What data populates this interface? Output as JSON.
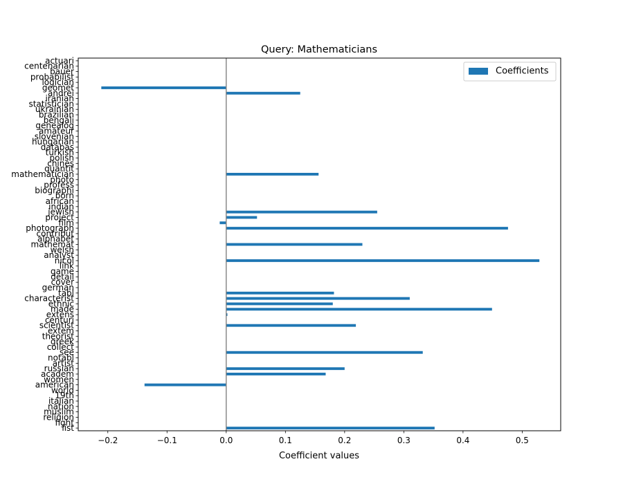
{
  "chart_data": {
    "type": "bar",
    "orientation": "horizontal",
    "title": "Query: Mathematicians",
    "xlabel": "Coefficient values",
    "ylabel": "",
    "xlim": [
      -0.25,
      0.565
    ],
    "xticks": [
      -0.2,
      -0.1,
      0.0,
      0.1,
      0.2,
      0.3,
      0.4,
      0.5
    ],
    "xtick_labels": [
      "−0.2",
      "−0.1",
      "0.0",
      "0.1",
      "0.2",
      "0.3",
      "0.4",
      "0.5"
    ],
    "grid": false,
    "legend": {
      "position": "top-right",
      "entries": [
        "Coefficients"
      ]
    },
    "series": [
      {
        "name": "Coefficients",
        "color": "#1f77b4",
        "categories": [
          "list",
          "fight",
          "religion",
          "muslim",
          "nation",
          "italian",
          "19th",
          "world",
          "american",
          "women",
          "academ",
          "russian",
          "artist",
          "notabl",
          "see",
          "collect",
          "greek",
          "theorist",
          "extem",
          "scientist",
          "centuri",
          "extens",
          "made",
          "ethnic",
          "characterist",
          "tabl",
          "german",
          "cover",
          "detail",
          "game",
          "link",
          "nicol",
          "analyst",
          "welsh",
          "mathemat",
          "alphabet",
          "contribut",
          "photograph",
          "film",
          "project",
          "jewish",
          "indian",
          "african",
          "born",
          "biographi",
          "profess",
          "photo",
          "mathematician",
          "quantit",
          "chines",
          "polish",
          "turkish",
          "databas",
          "hungarian",
          "slovenian",
          "amateur",
          "genealog",
          "bengali",
          "brazilian",
          "ukrainian",
          "statistician",
          "iranian",
          "andrei",
          "geomet",
          "logician",
          "probabilist",
          "bauer",
          "centenarian",
          "actuari"
        ],
        "values": [
          0.352,
          0,
          0,
          0,
          0,
          0,
          0,
          0,
          -0.138,
          0,
          0.168,
          0.2,
          0,
          0,
          0.332,
          0,
          0,
          0,
          0,
          0.219,
          0,
          0.002,
          0.449,
          0.18,
          0.31,
          0.182,
          0,
          0,
          0,
          0,
          0,
          0.529,
          0,
          0,
          0.23,
          0,
          0,
          0.476,
          -0.011,
          0.052,
          0.255,
          0,
          0,
          0,
          0,
          0,
          0,
          0.156,
          0,
          0,
          0,
          0,
          0,
          0,
          0,
          0,
          0,
          0,
          0,
          0,
          0,
          0,
          0.125,
          -0.211,
          0,
          0,
          0,
          0,
          0
        ]
      }
    ]
  }
}
